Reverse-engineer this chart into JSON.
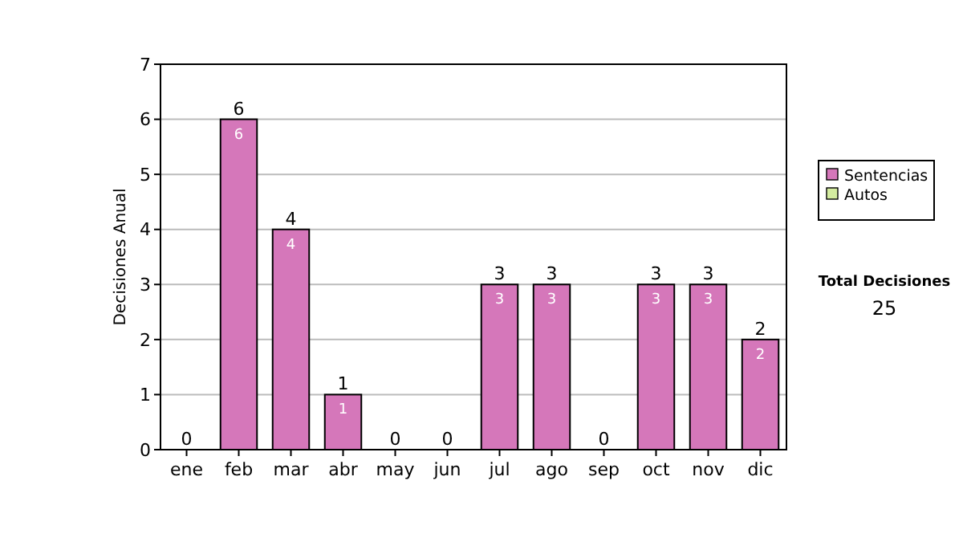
{
  "chart_data": {
    "type": "bar",
    "ylabel": "Decisiones Anual",
    "categories": [
      "ene",
      "feb",
      "mar",
      "abr",
      "may",
      "jun",
      "jul",
      "ago",
      "sep",
      "oct",
      "nov",
      "dic"
    ],
    "series": [
      {
        "name": "Sentencias",
        "color": "#d577ba",
        "values": [
          0,
          6,
          4,
          1,
          0,
          0,
          3,
          3,
          0,
          3,
          3,
          2
        ],
        "value_labels": [
          null,
          "6",
          "4",
          "1",
          null,
          null,
          "3",
          "3",
          null,
          "3",
          "3",
          "2"
        ]
      },
      {
        "name": "Autos",
        "color": "#d4eca0",
        "values": [
          0,
          0,
          0,
          0,
          0,
          0,
          0,
          0,
          0,
          0,
          0,
          0
        ]
      }
    ],
    "stacked": true,
    "totals": [
      "0",
      "6",
      "4",
      "1",
      "0",
      "0",
      "3",
      "3",
      "0",
      "3",
      "3",
      "2"
    ],
    "ylim": [
      0,
      7
    ],
    "yticks": [
      0,
      1,
      2,
      3,
      4,
      5,
      6,
      7
    ],
    "grid": "y",
    "legend": "right",
    "annotations": [
      "Total Decisiones",
      "25"
    ]
  }
}
